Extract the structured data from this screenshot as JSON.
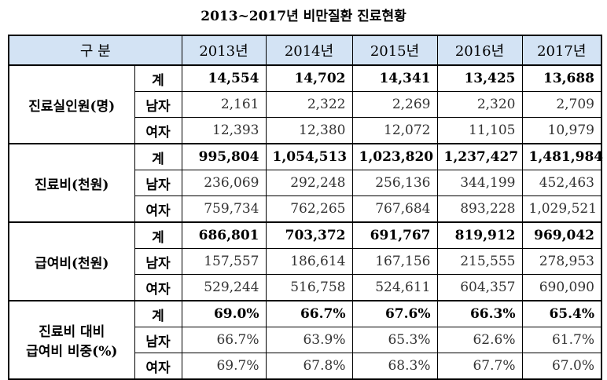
{
  "title": "2013~2017년 비만질환 진료현황",
  "header": {
    "category": "구 분",
    "years": [
      "2013년",
      "2014년",
      "2015년",
      "2016년",
      "2017년"
    ]
  },
  "groups": [
    {
      "label": "진료실인원(명)",
      "rows": [
        {
          "sub": "계",
          "values": [
            "14,554",
            "14,702",
            "14,341",
            "13,425",
            "13,688"
          ]
        },
        {
          "sub": "남자",
          "values": [
            "2,161",
            "2,322",
            "2,269",
            "2,320",
            "2,709"
          ]
        },
        {
          "sub": "여자",
          "values": [
            "12,393",
            "12,380",
            "12,072",
            "11,105",
            "10,979"
          ]
        }
      ]
    },
    {
      "label": "진료비(천원)",
      "rows": [
        {
          "sub": "계",
          "values": [
            "995,804",
            "1,054,513",
            "1,023,820",
            "1,237,427",
            "1,481,984"
          ]
        },
        {
          "sub": "남자",
          "values": [
            "236,069",
            "292,248",
            "256,136",
            "344,199",
            "452,463"
          ]
        },
        {
          "sub": "여자",
          "values": [
            "759,734",
            "762,265",
            "767,684",
            "893,228",
            "1,029,521"
          ]
        }
      ]
    },
    {
      "label": "급여비(천원)",
      "rows": [
        {
          "sub": "계",
          "values": [
            "686,801",
            "703,372",
            "691,767",
            "819,912",
            "969,042"
          ]
        },
        {
          "sub": "남자",
          "values": [
            "157,557",
            "186,614",
            "167,156",
            "215,555",
            "278,953"
          ]
        },
        {
          "sub": "여자",
          "values": [
            "529,244",
            "516,758",
            "524,611",
            "604,357",
            "690,090"
          ]
        }
      ]
    },
    {
      "label": "진료비 대비\n급여비 비중(%)",
      "rows": [
        {
          "sub": "계",
          "values": [
            "69.0%",
            "66.7%",
            "67.6%",
            "66.3%",
            "65.4%"
          ]
        },
        {
          "sub": "남자",
          "values": [
            "66.7%",
            "63.9%",
            "65.3%",
            "62.6%",
            "61.7%"
          ]
        },
        {
          "sub": "여자",
          "values": [
            "69.7%",
            "67.8%",
            "68.3%",
            "67.7%",
            "67.0%"
          ]
        }
      ]
    }
  ]
}
